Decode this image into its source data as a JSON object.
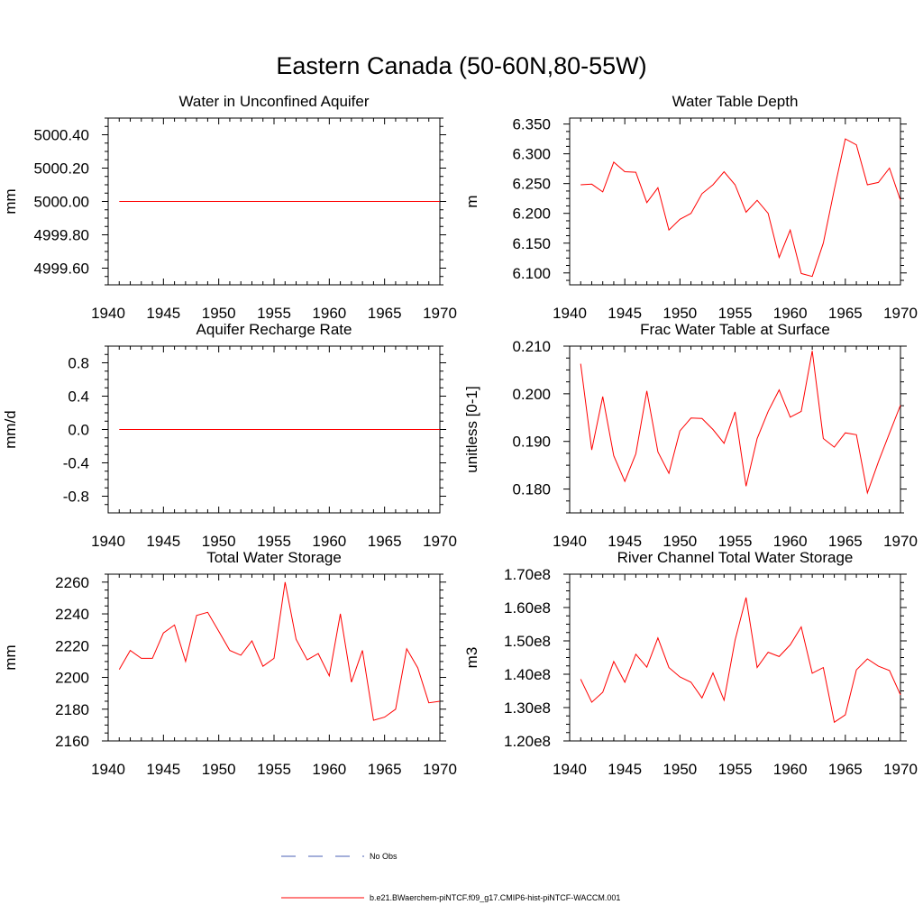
{
  "figure": {
    "title": "Eastern Canada (50-60N,80-55W)"
  },
  "legend": {
    "items": [
      {
        "label": "No Obs",
        "color": "#4a5fb5",
        "dash": true
      },
      {
        "label": "b.e21.BWaerchem-piNTCF.f09_g17.CMIP6-hist-piNTCF-WACCM.001",
        "color": "#ff0000",
        "dash": false
      }
    ]
  },
  "colors": {
    "series": "#ff0000",
    "axes": "#000000"
  },
  "chart_data": [
    {
      "type": "line",
      "title": "Water in Unconfined Aquifer",
      "ylabel": "mm",
      "xlim": [
        1940,
        1970
      ],
      "ylim": [
        4999.5,
        5000.5
      ],
      "xticks": [
        1940,
        1945,
        1950,
        1955,
        1960,
        1965,
        1970
      ],
      "yticks": [
        4999.6,
        4999.8,
        5000.0,
        5000.2,
        5000.4
      ],
      "ytick_labels": [
        "4999.60",
        "4999.80",
        "5000.00",
        "5000.20",
        "5000.40"
      ],
      "x": [
        1941,
        1970
      ],
      "y": [
        5000.0,
        5000.0
      ]
    },
    {
      "type": "line",
      "title": "Water Table Depth",
      "ylabel": "m",
      "xlim": [
        1940,
        1970
      ],
      "ylim": [
        6.08,
        6.36
      ],
      "xticks": [
        1940,
        1945,
        1950,
        1955,
        1960,
        1965,
        1970
      ],
      "yticks": [
        6.1,
        6.15,
        6.2,
        6.25,
        6.3,
        6.35
      ],
      "ytick_labels": [
        "6.100",
        "6.150",
        "6.200",
        "6.250",
        "6.300",
        "6.350"
      ],
      "x": [
        1941,
        1942,
        1943,
        1944,
        1945,
        1946,
        1947,
        1948,
        1949,
        1950,
        1951,
        1952,
        1953,
        1954,
        1955,
        1956,
        1957,
        1958,
        1959,
        1960,
        1961,
        1962,
        1963,
        1964,
        1965,
        1966,
        1967,
        1968,
        1969,
        1970
      ],
      "y": [
        6.248,
        6.249,
        6.236,
        6.286,
        6.27,
        6.269,
        6.218,
        6.243,
        6.172,
        6.19,
        6.2,
        6.233,
        6.248,
        6.27,
        6.248,
        6.202,
        6.222,
        6.2,
        6.126,
        6.172,
        6.099,
        6.094,
        6.15,
        6.24,
        6.325,
        6.315,
        6.248,
        6.252,
        6.276,
        6.222
      ]
    },
    {
      "type": "line",
      "title": "Aquifer Recharge Rate",
      "ylabel": "mm/d",
      "xlim": [
        1940,
        1970
      ],
      "ylim": [
        -1.0,
        1.0
      ],
      "xticks": [
        1940,
        1945,
        1950,
        1955,
        1960,
        1965,
        1970
      ],
      "yticks": [
        -0.8,
        -0.4,
        0.0,
        0.4,
        0.8
      ],
      "ytick_labels": [
        "-0.8",
        "-0.4",
        "0.0",
        "0.4",
        "0.8"
      ],
      "x": [
        1941,
        1970
      ],
      "y": [
        0.0,
        0.0
      ]
    },
    {
      "type": "line",
      "title": "Frac Water Table at Surface",
      "ylabel": "unitless [0-1]",
      "xlim": [
        1940,
        1970
      ],
      "ylim": [
        0.175,
        0.21
      ],
      "xticks": [
        1940,
        1945,
        1950,
        1955,
        1960,
        1965,
        1970
      ],
      "yticks": [
        0.18,
        0.19,
        0.2,
        0.21
      ],
      "ytick_labels": [
        "0.180",
        "0.190",
        "0.200",
        "0.210"
      ],
      "x": [
        1941,
        1942,
        1943,
        1944,
        1945,
        1946,
        1947,
        1948,
        1949,
        1950,
        1951,
        1952,
        1953,
        1954,
        1955,
        1956,
        1957,
        1958,
        1959,
        1960,
        1961,
        1962,
        1963,
        1964,
        1965,
        1966,
        1967,
        1968,
        1969,
        1970
      ],
      "y": [
        0.2063,
        0.1882,
        0.1994,
        0.187,
        0.1816,
        0.1874,
        0.2006,
        0.1878,
        0.1833,
        0.1922,
        0.1949,
        0.1948,
        0.1925,
        0.1896,
        0.1962,
        0.1806,
        0.1906,
        0.1963,
        0.2008,
        0.1951,
        0.1963,
        0.209,
        0.1906,
        0.1888,
        0.1918,
        0.1914,
        0.1792,
        0.1857,
        0.1917,
        0.1976
      ]
    },
    {
      "type": "line",
      "title": "Total Water Storage",
      "ylabel": "mm",
      "xlim": [
        1940,
        1970
      ],
      "ylim": [
        2160,
        2265
      ],
      "xticks": [
        1940,
        1945,
        1950,
        1955,
        1960,
        1965,
        1970
      ],
      "yticks": [
        2160,
        2180,
        2200,
        2220,
        2240,
        2260
      ],
      "ytick_labels": [
        "2160",
        "2180",
        "2200",
        "2220",
        "2240",
        "2260"
      ],
      "x": [
        1941,
        1942,
        1943,
        1944,
        1945,
        1946,
        1947,
        1948,
        1949,
        1950,
        1951,
        1952,
        1953,
        1954,
        1955,
        1956,
        1957,
        1958,
        1959,
        1960,
        1961,
        1962,
        1963,
        1964,
        1965,
        1966,
        1967,
        1968,
        1969,
        1970
      ],
      "y": [
        2205,
        2217,
        2212,
        2212,
        2228,
        2233,
        2210,
        2239,
        2241,
        2229,
        2217,
        2214,
        2223,
        2207,
        2212,
        2260,
        2224,
        2211,
        2215,
        2201,
        2240,
        2197,
        2217,
        2173,
        2175,
        2180,
        2218,
        2206,
        2184,
        2185
      ]
    },
    {
      "type": "line",
      "title": "River Channel Total Water Storage",
      "ylabel": "m3",
      "xlim": [
        1940,
        1970
      ],
      "ylim": [
        120000000,
        170000000
      ],
      "xticks": [
        1940,
        1945,
        1950,
        1955,
        1960,
        1965,
        1970
      ],
      "yticks": [
        120000000,
        130000000,
        140000000,
        150000000,
        160000000,
        170000000
      ],
      "ytick_labels": [
        "1.20e8",
        "1.30e8",
        "1.40e8",
        "1.50e8",
        "1.60e8",
        "1.70e8"
      ],
      "x": [
        1941,
        1942,
        1943,
        1944,
        1945,
        1946,
        1947,
        1948,
        1949,
        1950,
        1951,
        1952,
        1953,
        1954,
        1955,
        1956,
        1957,
        1958,
        1959,
        1960,
        1961,
        1962,
        1963,
        1964,
        1965,
        1966,
        1967,
        1968,
        1969,
        1970
      ],
      "y": [
        138500000,
        131600000,
        134600000,
        143800000,
        137600000,
        146000000,
        142100000,
        150900000,
        142000000,
        139200000,
        137600000,
        132900000,
        140400000,
        132200000,
        150200000,
        163000000,
        142000000,
        146600000,
        145300000,
        148800000,
        154200000,
        140300000,
        142000000,
        125600000,
        127800000,
        141300000,
        144600000,
        142400000,
        141100000,
        133800000
      ]
    }
  ]
}
